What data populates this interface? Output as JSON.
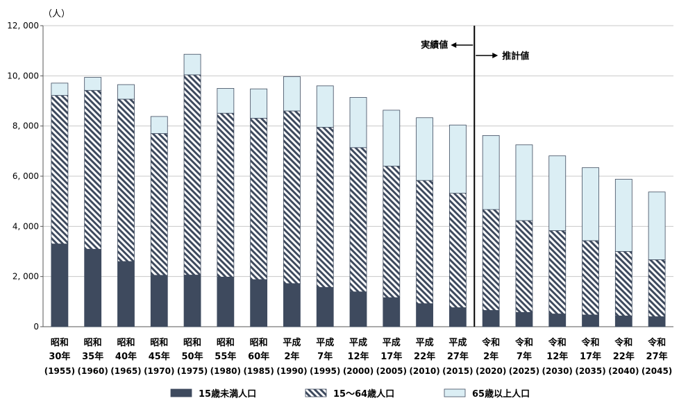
{
  "chart_data": {
    "type": "bar",
    "stacked": true,
    "unit_label": "（人）",
    "ylim": [
      0,
      12000
    ],
    "yticks": [
      "0",
      "2, 000",
      "4, 000",
      "6, 000",
      "8, 000",
      "10, 000",
      "12, 000"
    ],
    "categories": [
      {
        "era": "昭和",
        "year": "30年",
        "ad": "(1955)"
      },
      {
        "era": "昭和",
        "year": "35年",
        "ad": "(1960)"
      },
      {
        "era": "昭和",
        "year": "40年",
        "ad": "(1965)"
      },
      {
        "era": "昭和",
        "year": "45年",
        "ad": "(1970)"
      },
      {
        "era": "昭和",
        "year": "50年",
        "ad": "(1975)"
      },
      {
        "era": "昭和",
        "year": "55年",
        "ad": "(1980)"
      },
      {
        "era": "昭和",
        "year": "60年",
        "ad": "(1985)"
      },
      {
        "era": "平成",
        "year": "2年",
        "ad": "(1990)"
      },
      {
        "era": "平成",
        "year": "7年",
        "ad": "(1995)"
      },
      {
        "era": "平成",
        "year": "12年",
        "ad": "(2000)"
      },
      {
        "era": "平成",
        "year": "17年",
        "ad": "(2005)"
      },
      {
        "era": "平成",
        "year": "22年",
        "ad": "(2010)"
      },
      {
        "era": "平成",
        "year": "27年",
        "ad": "(2015)"
      },
      {
        "era": "令和",
        "year": "2年",
        "ad": "(2020)"
      },
      {
        "era": "令和",
        "year": "7年",
        "ad": "(2025)"
      },
      {
        "era": "令和",
        "year": "12年",
        "ad": "(2030)"
      },
      {
        "era": "令和",
        "year": "17年",
        "ad": "(2035)"
      },
      {
        "era": "令和",
        "year": "22年",
        "ad": "(2040)"
      },
      {
        "era": "令和",
        "year": "27年",
        "ad": "(2045)"
      }
    ],
    "series": [
      {
        "name": "15歳未満人口",
        "pattern": "solid",
        "color": "#3e4a5e",
        "values": [
          3300,
          3090,
          2600,
          2050,
          2060,
          1980,
          1880,
          1720,
          1570,
          1390,
          1160,
          920,
          760,
          650,
          570,
          510,
          470,
          430,
          400
        ]
      },
      {
        "name": "15～64歳人口",
        "pattern": "hatch",
        "color": "#3e4a5e",
        "values": [
          5920,
          6330,
          6470,
          5650,
          7980,
          6530,
          6430,
          6880,
          6380,
          5750,
          5240,
          4910,
          4560,
          4020,
          3660,
          3320,
          2960,
          2570,
          2270
        ]
      },
      {
        "name": "65歳以上人口",
        "pattern": "solid",
        "color": "#dbeef4",
        "values": [
          490,
          520,
          580,
          680,
          820,
          990,
          1170,
          1370,
          1650,
          2000,
          2230,
          2500,
          2720,
          2950,
          3020,
          2980,
          2910,
          2880,
          2700
        ]
      }
    ],
    "annotations": {
      "actual": "実績値",
      "estimate": "推計値",
      "divider_after_index": 12
    },
    "legend_position": "bottom"
  }
}
